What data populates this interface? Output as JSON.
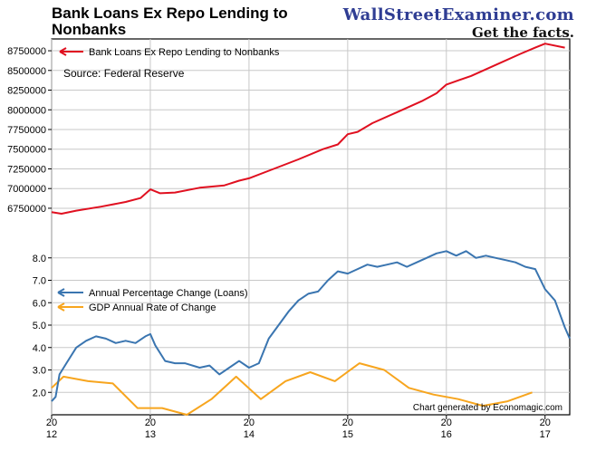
{
  "header": {
    "title": "Bank Loans Ex Repo Lending to Nonbanks",
    "brand": "WallStreetExaminer.com",
    "tagline": "Get the facts."
  },
  "chart_data": [
    {
      "type": "line",
      "panel": "top",
      "y_ticks": [
        "6750000",
        "7000000",
        "7250000",
        "7500000",
        "7750000",
        "8000000",
        "8250000",
        "8500000",
        "8750000"
      ],
      "ylim": [
        6600000,
        8900000
      ],
      "source": "Source: Federal Reserve",
      "series": [
        {
          "name": "Bank Loans Ex Repo Lending to Nonbanks",
          "color": "#e01020",
          "x": [
            2012.0,
            2012.1,
            2012.25,
            2012.5,
            2012.75,
            2012.9,
            2013.0,
            2013.1,
            2013.25,
            2013.5,
            2013.75,
            2013.9,
            2014.0,
            2014.25,
            2014.5,
            2014.75,
            2014.9,
            2015.0,
            2015.1,
            2015.25,
            2015.5,
            2015.75,
            2015.9,
            2016.0,
            2016.25,
            2016.5,
            2016.75,
            2016.9,
            2017.0,
            2017.2
          ],
          "values": [
            6700000,
            6680000,
            6720000,
            6770000,
            6830000,
            6880000,
            6990000,
            6940000,
            6950000,
            7010000,
            7040000,
            7100000,
            7130000,
            7250000,
            7370000,
            7500000,
            7560000,
            7690000,
            7720000,
            7830000,
            7970000,
            8110000,
            8210000,
            8320000,
            8430000,
            8570000,
            8710000,
            8790000,
            8840000,
            8790000
          ]
        }
      ]
    },
    {
      "type": "line",
      "panel": "bottom",
      "y_ticks": [
        "2.0",
        "3.0",
        "4.0",
        "5.0",
        "6.0",
        "7.0",
        "8.0"
      ],
      "ylim": [
        1.0,
        9.0
      ],
      "x_ticks": [
        "20\n12",
        "20\n13",
        "20\n14",
        "20\n15",
        "20\n16",
        "20\n17"
      ],
      "x_tick_values": [
        2012,
        2013,
        2014,
        2015,
        2016,
        2017
      ],
      "xlim": [
        2012.0,
        2017.25
      ],
      "credit": "Chart generated by Economagic.com",
      "series": [
        {
          "name": "Annual Percentage Change (Loans)",
          "color": "#3a75b0",
          "x": [
            2012.0,
            2012.04,
            2012.08,
            2012.15,
            2012.25,
            2012.35,
            2012.45,
            2012.55,
            2012.65,
            2012.75,
            2012.85,
            2012.95,
            2013.0,
            2013.05,
            2013.15,
            2013.25,
            2013.35,
            2013.5,
            2013.6,
            2013.7,
            2013.8,
            2013.9,
            2014.0,
            2014.1,
            2014.2,
            2014.3,
            2014.4,
            2014.5,
            2014.6,
            2014.7,
            2014.8,
            2014.9,
            2015.0,
            2015.1,
            2015.2,
            2015.3,
            2015.4,
            2015.5,
            2015.6,
            2015.7,
            2015.8,
            2015.9,
            2016.0,
            2016.1,
            2016.2,
            2016.3,
            2016.4,
            2016.5,
            2016.6,
            2016.7,
            2016.8,
            2016.9,
            2017.0,
            2017.1,
            2017.2,
            2017.25
          ],
          "values": [
            1.6,
            1.8,
            2.8,
            3.3,
            4.0,
            4.3,
            4.5,
            4.4,
            4.2,
            4.3,
            4.2,
            4.5,
            4.6,
            4.1,
            3.4,
            3.3,
            3.3,
            3.1,
            3.2,
            2.8,
            3.1,
            3.4,
            3.1,
            3.3,
            4.4,
            5.0,
            5.6,
            6.1,
            6.4,
            6.5,
            7.0,
            7.4,
            7.3,
            7.5,
            7.7,
            7.6,
            7.7,
            7.8,
            7.6,
            7.8,
            8.0,
            8.2,
            8.3,
            8.1,
            8.3,
            8.0,
            8.1,
            8.0,
            7.9,
            7.8,
            7.6,
            7.5,
            6.6,
            6.1,
            4.9,
            4.4
          ]
        },
        {
          "name": "GDP Annual Rate of Change",
          "color": "#f7a51e",
          "x": [
            2012.0,
            2012.12,
            2012.37,
            2012.62,
            2012.87,
            2013.12,
            2013.37,
            2013.62,
            2013.87,
            2014.12,
            2014.37,
            2014.62,
            2014.87,
            2015.12,
            2015.37,
            2015.62,
            2015.87,
            2016.12,
            2016.37,
            2016.62,
            2016.87
          ],
          "values": [
            2.2,
            2.7,
            2.5,
            2.4,
            1.3,
            1.3,
            1.0,
            1.7,
            2.7,
            1.7,
            2.5,
            2.9,
            2.5,
            3.3,
            3.0,
            2.2,
            1.9,
            1.7,
            1.4,
            1.6,
            2.0
          ]
        }
      ]
    }
  ]
}
